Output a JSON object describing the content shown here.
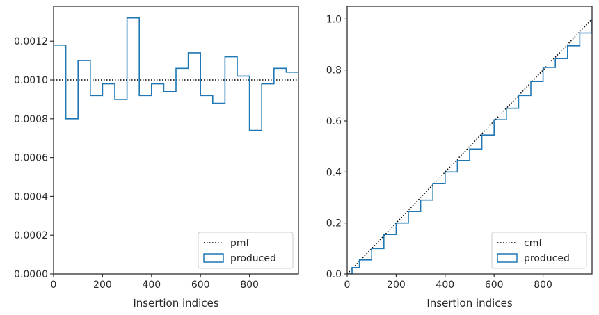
{
  "colors": {
    "produced": "#1f77b4",
    "reference": "#000000",
    "axis": "#262626"
  },
  "chart_data": [
    {
      "type": "line",
      "plot_style": "step-histogram",
      "xlabel": "Insertion indices",
      "ylabel": "",
      "xlim": [
        0,
        1000
      ],
      "ylim": [
        0,
        0.00138
      ],
      "xticks": [
        0,
        200,
        400,
        600,
        800
      ],
      "xtick_labels": [
        "0",
        "200",
        "400",
        "600",
        "800"
      ],
      "yticks": [
        0,
        0.0002,
        0.0004,
        0.0006,
        0.0008,
        0.001,
        0.0012
      ],
      "ytick_labels": [
        "0.0000",
        "0.0002",
        "0.0004",
        "0.0006",
        "0.0008",
        "0.0010",
        "0.0012"
      ],
      "grid": false,
      "legend": {
        "position": "bottom-right",
        "entries": [
          "pmf",
          "produced"
        ]
      },
      "series": [
        {
          "name": "pmf",
          "style": "dotted",
          "color": "#000000",
          "x": [
            0,
            1000
          ],
          "y": [
            0.001,
            0.001
          ]
        },
        {
          "name": "produced",
          "style": "step",
          "color": "#1f77b4",
          "bin_edges": [
            0,
            50,
            100,
            150,
            200,
            250,
            300,
            350,
            400,
            450,
            500,
            550,
            600,
            650,
            700,
            750,
            800,
            850,
            900,
            950,
            1000
          ],
          "values": [
            0.00118,
            0.0008,
            0.0011,
            0.00092,
            0.00098,
            0.0009,
            0.00132,
            0.00092,
            0.00098,
            0.00094,
            0.00106,
            0.00114,
            0.00092,
            0.00088,
            0.00112,
            0.00102,
            0.00074,
            0.00098,
            0.00106,
            0.00104
          ]
        }
      ]
    },
    {
      "type": "line",
      "plot_style": "cumulative-step",
      "xlabel": "Insertion indices",
      "ylabel": "",
      "xlim": [
        0,
        1000
      ],
      "ylim": [
        0,
        1.05
      ],
      "xticks": [
        0,
        200,
        400,
        600,
        800
      ],
      "xtick_labels": [
        "0",
        "200",
        "400",
        "600",
        "800"
      ],
      "yticks": [
        0,
        0.2,
        0.4,
        0.6,
        0.8,
        1.0
      ],
      "ytick_labels": [
        "0.0",
        "0.2",
        "0.4",
        "0.6",
        "0.8",
        "1.0"
      ],
      "grid": false,
      "legend": {
        "position": "bottom-right",
        "entries": [
          "cmf",
          "produced"
        ]
      },
      "series": [
        {
          "name": "cmf",
          "style": "dotted",
          "color": "#000000",
          "x": [
            0,
            1000
          ],
          "y": [
            0,
            1.0
          ]
        },
        {
          "name": "produced",
          "style": "step",
          "color": "#1f77b4",
          "x": [
            0,
            20,
            50,
            100,
            150,
            200,
            250,
            300,
            350,
            400,
            450,
            500,
            550,
            600,
            650,
            700,
            750,
            800,
            850,
            900,
            950,
            1000
          ],
          "y": [
            0,
            0.025,
            0.055,
            0.1,
            0.155,
            0.2,
            0.245,
            0.29,
            0.355,
            0.4,
            0.445,
            0.49,
            0.545,
            0.605,
            0.65,
            0.7,
            0.755,
            0.81,
            0.845,
            0.895,
            0.945,
            1.0
          ]
        }
      ]
    }
  ]
}
